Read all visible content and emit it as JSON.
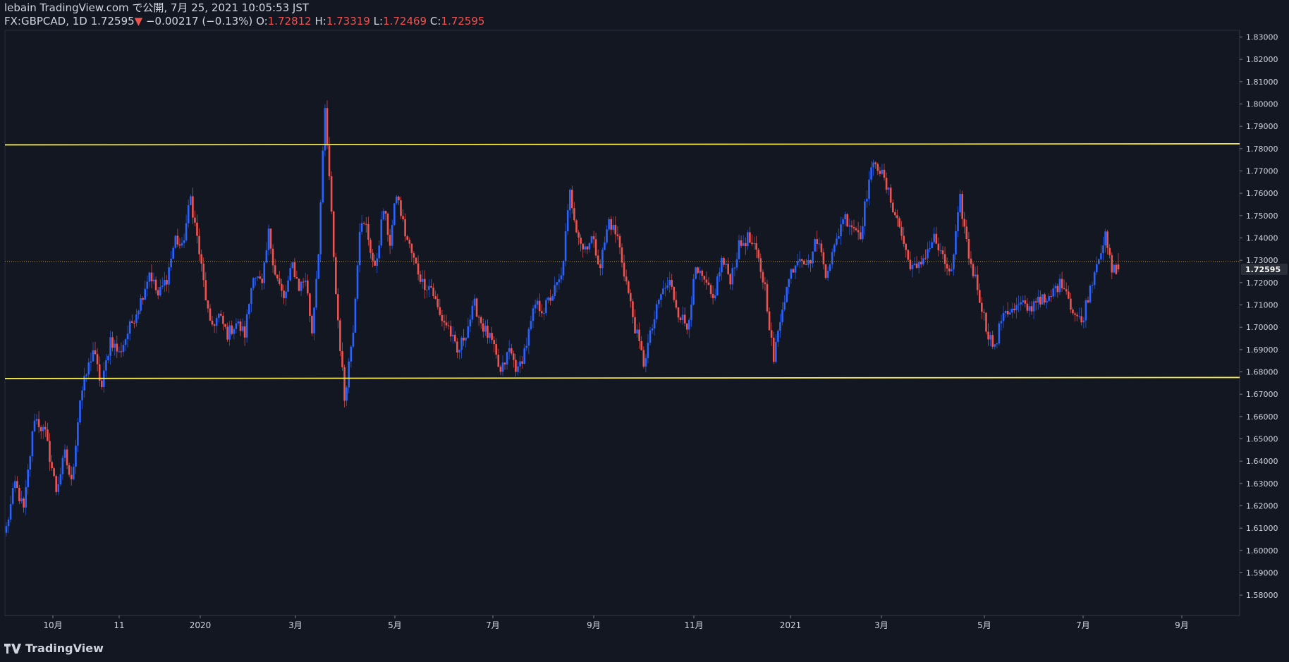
{
  "header": {
    "published": "lebain TradingView.com で公開, 7月 25, 2021 10:05:53 JST",
    "symbol": "FX:GBPCAD, 1D",
    "last": "1.72595",
    "change_arrow": "▼",
    "change": "−0.00217 (−0.13%)",
    "o_label": "O:",
    "o_value": "1.72812",
    "h_label": "H:",
    "h_value": "1.73319",
    "l_label": "L:",
    "l_value": "1.72469",
    "c_label": "C:",
    "c_value": "1.72595"
  },
  "footer": {
    "logo_text": "TradingView"
  },
  "colors": {
    "background": "#131722",
    "up": "#2962ff",
    "down": "#ef5350",
    "level_line": "#f5e94a",
    "grid": "#2a2e39",
    "axis_text": "#d1d4dc"
  },
  "chart_data": {
    "type": "candlestick",
    "symbol": "FX:GBPCAD",
    "interval": "1D",
    "ylim": [
      1.575,
      1.833
    ],
    "y_ticks": [
      1.58,
      1.59,
      1.6,
      1.61,
      1.62,
      1.63,
      1.64,
      1.65,
      1.66,
      1.67,
      1.68,
      1.69,
      1.7,
      1.71,
      1.72,
      1.73,
      1.74,
      1.75,
      1.76,
      1.77,
      1.78,
      1.79,
      1.8,
      1.81,
      1.82,
      1.83
    ],
    "last_price_label": "1.72595",
    "x_ticks": [
      "10月",
      "11",
      "2020",
      "3月",
      "5月",
      "7月",
      "9月",
      "11月",
      "2021",
      "3月",
      "5月",
      "7月",
      "9月"
    ],
    "horizontal_levels": [
      1.7817,
      1.6775
    ],
    "dotted_level": 1.7295,
    "path": [
      [
        0,
        1.61
      ],
      [
        4,
        1.63
      ],
      [
        8,
        1.618
      ],
      [
        13,
        1.66
      ],
      [
        18,
        1.652
      ],
      [
        23,
        1.627
      ],
      [
        27,
        1.643
      ],
      [
        30,
        1.63
      ],
      [
        34,
        1.668
      ],
      [
        40,
        1.69
      ],
      [
        44,
        1.673
      ],
      [
        48,
        1.695
      ],
      [
        52,
        1.688
      ],
      [
        57,
        1.7
      ],
      [
        62,
        1.712
      ],
      [
        66,
        1.725
      ],
      [
        70,
        1.714
      ],
      [
        74,
        1.722
      ],
      [
        78,
        1.74
      ],
      [
        81,
        1.735
      ],
      [
        85,
        1.758
      ],
      [
        88,
        1.74
      ],
      [
        91,
        1.72
      ],
      [
        94,
        1.7
      ],
      [
        98,
        1.705
      ],
      [
        102,
        1.697
      ],
      [
        106,
        1.702
      ],
      [
        110,
        1.697
      ],
      [
        114,
        1.725
      ],
      [
        118,
        1.718
      ],
      [
        121,
        1.742
      ],
      [
        124,
        1.725
      ],
      [
        128,
        1.712
      ],
      [
        132,
        1.728
      ],
      [
        135,
        1.718
      ],
      [
        138,
        1.722
      ],
      [
        141,
        1.698
      ],
      [
        144,
        1.735
      ],
      [
        147,
        1.797
      ],
      [
        150,
        1.75
      ],
      [
        152,
        1.715
      ],
      [
        156,
        1.668
      ],
      [
        160,
        1.7
      ],
      [
        163,
        1.745
      ],
      [
        166,
        1.745
      ],
      [
        170,
        1.725
      ],
      [
        174,
        1.753
      ],
      [
        177,
        1.738
      ],
      [
        180,
        1.76
      ],
      [
        184,
        1.742
      ],
      [
        188,
        1.73
      ],
      [
        192,
        1.72
      ],
      [
        196,
        1.718
      ],
      [
        200,
        1.705
      ],
      [
        204,
        1.7
      ],
      [
        208,
        1.688
      ],
      [
        212,
        1.698
      ],
      [
        216,
        1.71
      ],
      [
        220,
        1.7
      ],
      [
        224,
        1.693
      ],
      [
        228,
        1.679
      ],
      [
        232,
        1.69
      ],
      [
        236,
        1.68
      ],
      [
        240,
        1.693
      ],
      [
        244,
        1.71
      ],
      [
        248,
        1.708
      ],
      [
        252,
        1.715
      ],
      [
        256,
        1.722
      ],
      [
        260,
        1.76
      ],
      [
        263,
        1.745
      ],
      [
        266,
        1.735
      ],
      [
        270,
        1.74
      ],
      [
        274,
        1.728
      ],
      [
        278,
        1.748
      ],
      [
        282,
        1.74
      ],
      [
        286,
        1.72
      ],
      [
        290,
        1.7
      ],
      [
        294,
        1.684
      ],
      [
        298,
        1.7
      ],
      [
        302,
        1.715
      ],
      [
        306,
        1.72
      ],
      [
        310,
        1.707
      ],
      [
        314,
        1.7
      ],
      [
        318,
        1.725
      ],
      [
        322,
        1.72
      ],
      [
        326,
        1.712
      ],
      [
        330,
        1.73
      ],
      [
        334,
        1.722
      ],
      [
        338,
        1.736
      ],
      [
        342,
        1.74
      ],
      [
        346,
        1.733
      ],
      [
        350,
        1.718
      ],
      [
        354,
        1.685
      ],
      [
        358,
        1.71
      ],
      [
        362,
        1.725
      ],
      [
        366,
        1.733
      ],
      [
        370,
        1.728
      ],
      [
        374,
        1.74
      ],
      [
        378,
        1.725
      ],
      [
        382,
        1.735
      ],
      [
        386,
        1.75
      ],
      [
        390,
        1.746
      ],
      [
        394,
        1.742
      ],
      [
        398,
        1.766
      ],
      [
        401,
        1.775
      ],
      [
        404,
        1.768
      ],
      [
        408,
        1.757
      ],
      [
        412,
        1.745
      ],
      [
        416,
        1.73
      ],
      [
        420,
        1.725
      ],
      [
        424,
        1.733
      ],
      [
        428,
        1.74
      ],
      [
        432,
        1.73
      ],
      [
        436,
        1.724
      ],
      [
        440,
        1.757
      ],
      [
        444,
        1.732
      ],
      [
        448,
        1.718
      ],
      [
        452,
        1.7
      ],
      [
        456,
        1.69
      ],
      [
        460,
        1.708
      ],
      [
        464,
        1.707
      ],
      [
        468,
        1.71
      ],
      [
        472,
        1.708
      ],
      [
        476,
        1.714
      ],
      [
        480,
        1.71
      ],
      [
        484,
        1.718
      ],
      [
        488,
        1.72
      ],
      [
        492,
        1.707
      ],
      [
        496,
        1.702
      ],
      [
        500,
        1.718
      ],
      [
        504,
        1.733
      ],
      [
        507,
        1.74
      ],
      [
        510,
        1.725
      ],
      [
        513,
        1.727
      ]
    ],
    "ohlc_last": {
      "open": 1.72812,
      "high": 1.73319,
      "low": 1.72469,
      "close": 1.72595
    }
  }
}
